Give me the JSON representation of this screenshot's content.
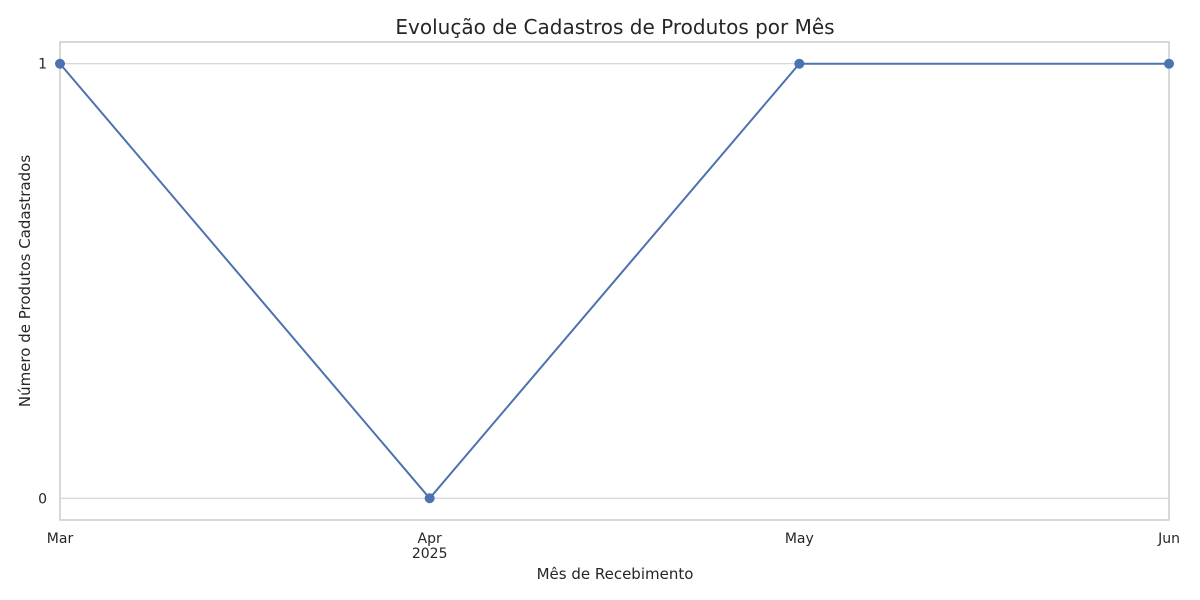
{
  "chart_data": {
    "type": "line",
    "title": "Evolução de Cadastros de Produtos por Mês",
    "xlabel": "Mês de Recebimento",
    "ylabel": "Número de Produtos Cadastrados",
    "x": [
      "Mar",
      "Apr",
      "May",
      "Jun"
    ],
    "x_year_label": "2025",
    "y": [
      1,
      0,
      1,
      1
    ],
    "ylim": [
      -0.05,
      1.05
    ],
    "yticks": [
      "0",
      "1"
    ],
    "grid": "horizontal",
    "marker": "circle",
    "colors": {
      "line": "#4c72b0",
      "grid": "#cccccc",
      "frame": "#cccccc"
    }
  }
}
